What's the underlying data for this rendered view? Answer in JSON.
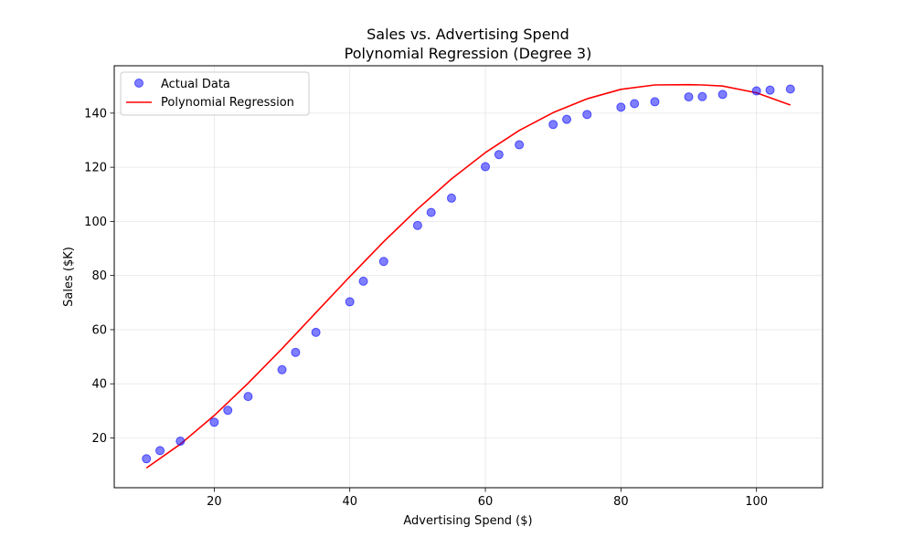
{
  "chart_data": {
    "type": "scatter",
    "title": "Sales vs. Advertising Spend",
    "subtitle": "Polynomial Regression (Degree 3)",
    "xlabel": "Advertising Spend ($)",
    "ylabel": "Sales ($K)",
    "xlim": [
      5.25,
      109.75
    ],
    "ylim": [
      1.6,
      157.5
    ],
    "xticks": [
      20,
      40,
      60,
      80,
      100
    ],
    "yticks": [
      20,
      40,
      60,
      80,
      100,
      120,
      140
    ],
    "grid": true,
    "legend_position": "top-left",
    "series": [
      {
        "name": "Actual Data",
        "kind": "scatter",
        "color": "#0000ff",
        "x": [
          10,
          12,
          15,
          20,
          22,
          25,
          30,
          32,
          35,
          40,
          42,
          45,
          50,
          52,
          55,
          60,
          62,
          65,
          70,
          72,
          75,
          80,
          82,
          85,
          90,
          92,
          95,
          100,
          102,
          105
        ],
        "y": [
          12.3,
          15.3,
          18.8,
          25.8,
          30.2,
          35.3,
          45.2,
          51.6,
          59.0,
          70.3,
          77.9,
          85.2,
          98.5,
          103.3,
          108.6,
          120.2,
          124.7,
          128.3,
          135.8,
          137.7,
          139.5,
          142.2,
          143.5,
          144.2,
          146.0,
          146.1,
          146.9,
          148.2,
          148.5,
          148.9
        ]
      },
      {
        "name": "Polynomial Regression",
        "kind": "line",
        "color": "#ff0000",
        "x": [
          10,
          15,
          20,
          25,
          30,
          35,
          40,
          45,
          50,
          55,
          60,
          65,
          70,
          75,
          80,
          85,
          90,
          92,
          95,
          100,
          105
        ],
        "y": [
          8.9,
          17.7,
          28.3,
          40.2,
          53.0,
          66.3,
          79.6,
          92.5,
          104.6,
          115.7,
          125.4,
          133.6,
          140.2,
          145.3,
          148.8,
          150.4,
          150.5,
          150.4,
          150.0,
          147.5,
          143.0
        ]
      }
    ]
  }
}
